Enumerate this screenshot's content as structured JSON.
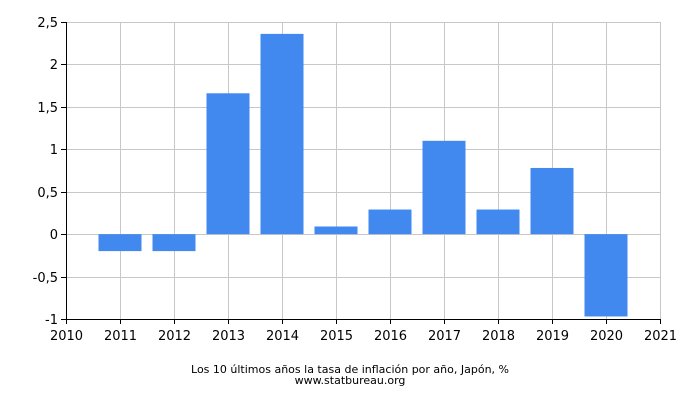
{
  "chart_data": {
    "type": "bar",
    "categories": [
      "2011",
      "2012",
      "2013",
      "2014",
      "2015",
      "2016",
      "2017",
      "2018",
      "2019",
      "2020"
    ],
    "values": [
      -0.2,
      -0.2,
      1.66,
      2.36,
      0.09,
      0.29,
      1.1,
      0.29,
      0.78,
      -0.97
    ],
    "x_ticks": [
      "2010",
      "2011",
      "2012",
      "2013",
      "2014",
      "2015",
      "2016",
      "2017",
      "2018",
      "2019",
      "2020",
      "2021"
    ],
    "y_ticks": [
      "2,5",
      "2",
      "1,5",
      "1",
      "0,5",
      "0",
      "-0,5",
      "-1"
    ],
    "ylim": [
      -1,
      2.5
    ],
    "grid": true,
    "bar_color": "#4189ef",
    "caption": "Los 10 últimos años la tasa de inflación por año, Japón, %",
    "source": "www.statbureau.org"
  }
}
